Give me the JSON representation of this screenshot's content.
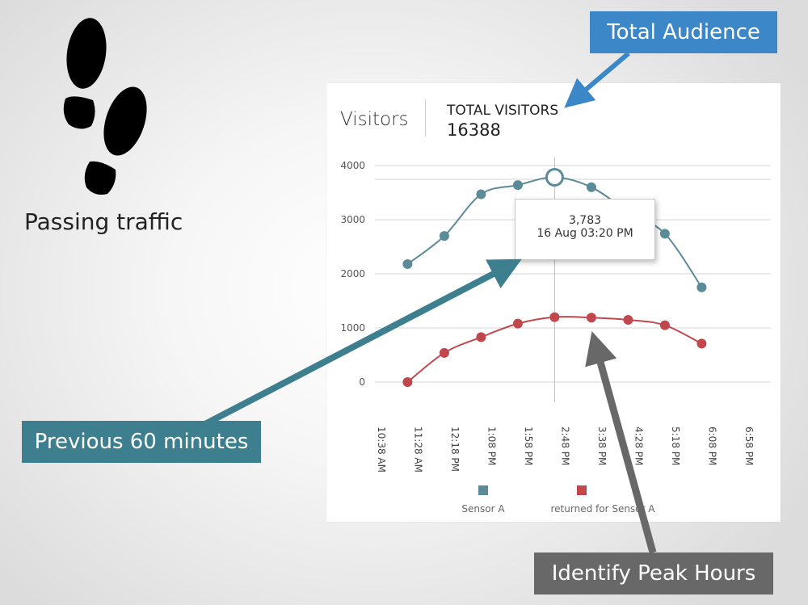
{
  "left_panel": {
    "label": "Passing traffic",
    "icon": "footprints-icon"
  },
  "card": {
    "title": "Visitors",
    "total_label": "TOTAL VISITORS",
    "total_value": "16388"
  },
  "tooltip": {
    "value": "3,783",
    "time": "16 Aug 03:20 PM"
  },
  "callouts": {
    "total": "Total Audience",
    "previous": "Previous 60 minutes",
    "peak": "Identify Peak Hours"
  },
  "colors": {
    "sensor_a": "#5b8b98",
    "returned": "#c0474c",
    "callout_total": "#3b87c7",
    "callout_previous": "#3d7f8e",
    "callout_peak": "#686868"
  },
  "chart_data": {
    "type": "line",
    "ylim": [
      0,
      4000
    ],
    "yticks": [
      0,
      1000,
      2000,
      3000,
      4000
    ],
    "categories": [
      "10:38 AM",
      "11:28 AM",
      "12:18 PM",
      "1:08 PM",
      "1:58 PM",
      "2:48 PM",
      "3:38 PM",
      "4:28 PM",
      "5:18 PM",
      "6:08 PM",
      "6:58 PM"
    ],
    "series": [
      {
        "name": "Sensor A",
        "color": "#5b8b98",
        "points": [
          [
            0.8,
            2180
          ],
          [
            1.8,
            2700
          ],
          [
            2.8,
            3470
          ],
          [
            3.8,
            3640
          ],
          [
            4.8,
            3783
          ],
          [
            5.8,
            3600
          ],
          [
            6.8,
            3150
          ],
          [
            7.8,
            2740
          ],
          [
            8.8,
            1750
          ]
        ]
      },
      {
        "name": "returned for Sensor A",
        "color": "#c0474c",
        "points": [
          [
            0.8,
            0
          ],
          [
            1.8,
            540
          ],
          [
            2.8,
            830
          ],
          [
            3.8,
            1080
          ],
          [
            4.8,
            1200
          ],
          [
            5.8,
            1190
          ],
          [
            6.8,
            1150
          ],
          [
            7.8,
            1050
          ],
          [
            8.8,
            710
          ]
        ]
      }
    ],
    "highlight": {
      "x": 4.8,
      "y": 3783,
      "label": "3,783",
      "time": "16 Aug 03:20 PM"
    },
    "grid": true,
    "legend": "bottom"
  }
}
